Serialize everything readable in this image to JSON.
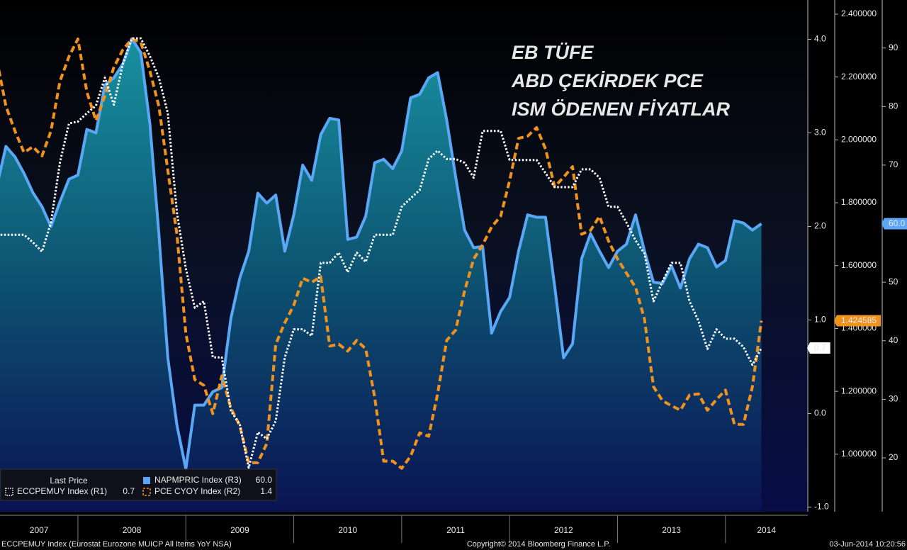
{
  "chart_data": {
    "type": "line",
    "annotations": [
      {
        "text": "EB TÜFE",
        "color": "#ffffff"
      },
      {
        "text": "ABD ÇEKİRDEK PCE",
        "color": "#f0921e"
      },
      {
        "text": "ISM ÖDENEN FİYATLAR",
        "color": "#5aa8f5"
      }
    ],
    "legend_title": "Last Price",
    "footer_left": "ECCPEMUY Index (Eurostat Eurozone MUICP All Items YoY NSA)",
    "footer_center": "Copyright© 2014 Bloomberg Finance L.P.",
    "footer_right": "03-Jun-2014 10:20:56",
    "x": [
      2007.25,
      2007.333,
      2007.417,
      2007.5,
      2007.583,
      2007.667,
      2007.75,
      2007.833,
      2007.917,
      2008,
      2008.083,
      2008.167,
      2008.25,
      2008.333,
      2008.417,
      2008.5,
      2008.583,
      2008.667,
      2008.75,
      2008.833,
      2008.917,
      2009,
      2009.083,
      2009.167,
      2009.25,
      2009.333,
      2009.417,
      2009.5,
      2009.583,
      2009.667,
      2009.75,
      2009.833,
      2009.917,
      2010,
      2010.083,
      2010.167,
      2010.25,
      2010.333,
      2010.417,
      2010.5,
      2010.583,
      2010.667,
      2010.75,
      2010.833,
      2010.917,
      2011,
      2011.083,
      2011.167,
      2011.25,
      2011.333,
      2011.417,
      2011.5,
      2011.583,
      2011.667,
      2011.75,
      2011.833,
      2011.917,
      2012,
      2012.083,
      2012.167,
      2012.25,
      2012.333,
      2012.417,
      2012.5,
      2012.583,
      2012.667,
      2012.75,
      2012.833,
      2012.917,
      2013,
      2013.083,
      2013.167,
      2013.25,
      2013.333,
      2013.417,
      2013.5,
      2013.583,
      2013.667,
      2013.75,
      2013.833,
      2013.917,
      2014,
      2014.083,
      2014.167,
      2014.25,
      2014.333
    ],
    "xlim": [
      2007.278,
      2014.763
    ],
    "xticks": [
      {
        "value": 2007.64,
        "label": "2007"
      },
      {
        "value": 2008.5,
        "label": "2008"
      },
      {
        "value": 2009.5,
        "label": "2009"
      },
      {
        "value": 2010.5,
        "label": "2010"
      },
      {
        "value": 2011.5,
        "label": "2011"
      },
      {
        "value": 2012.5,
        "label": "2012"
      },
      {
        "value": 2013.5,
        "label": "2013"
      },
      {
        "value": 2014.38,
        "label": "2014"
      }
    ],
    "ylim": [
      -1.05,
      4.42
    ],
    "yticks": [
      {
        "value": -1,
        "label": "-1.0"
      },
      {
        "value": 0,
        "label": "0.0"
      },
      {
        "value": 1,
        "label": "1.0"
      },
      {
        "value": 2,
        "label": "2.0"
      },
      {
        "value": 3,
        "label": "3.0"
      },
      {
        "value": 4,
        "label": "4.0"
      }
    ],
    "y2lim": [
      0.817,
      2.445
    ],
    "y2ticks": [
      {
        "value": 1,
        "label": "1.000000"
      },
      {
        "value": 1.2,
        "label": "1.200000"
      },
      {
        "value": 1.4,
        "label": "1.400000"
      },
      {
        "value": 1.6,
        "label": "1.600000"
      },
      {
        "value": 1.8,
        "label": "1.800000"
      },
      {
        "value": 2,
        "label": "2.000000"
      },
      {
        "value": 2.2,
        "label": "2.200000"
      },
      {
        "value": 2.4,
        "label": "2.400000"
      }
    ],
    "y3lim": [
      10.8,
      98.2
    ],
    "y3ticks": [
      20,
      30,
      40,
      50,
      60,
      70,
      80,
      90
    ],
    "series": [
      {
        "name": "ECCPEMUY Index  (R1)",
        "legend_value": "0.7",
        "flag_label": "0.7",
        "axis": "y",
        "color": "#ffffff",
        "style": "dotted",
        "values": [
          1.91,
          1.91,
          1.91,
          1.91,
          1.83,
          1.73,
          2.04,
          2.68,
          3.1,
          3.12,
          3.21,
          3.29,
          3.59,
          3.3,
          3.74,
          4.01,
          4.01,
          3.82,
          3.59,
          3.21,
          2.15,
          1.55,
          1.13,
          1.2,
          0.6,
          0.6,
          0.03,
          -0.12,
          -0.58,
          -0.2,
          -0.27,
          -0.08,
          0.6,
          0.9,
          0.9,
          0.83,
          1.61,
          1.61,
          1.72,
          1.51,
          1.72,
          1.62,
          1.91,
          1.91,
          1.91,
          2.21,
          2.3,
          2.39,
          2.72,
          2.81,
          2.72,
          2.72,
          2.68,
          2.52,
          3.02,
          3.02,
          3.02,
          2.71,
          2.71,
          2.71,
          2.71,
          2.57,
          2.42,
          2.42,
          2.42,
          2.61,
          2.61,
          2.52,
          2.21,
          2.21,
          2.04,
          1.85,
          1.71,
          1.2,
          1.41,
          1.61,
          1.61,
          1.2,
          0.99,
          0.69,
          0.9,
          0.8,
          0.8,
          0.71,
          0.52,
          0.7
        ]
      },
      {
        "name": "PCE CYOY Index  (R2)",
        "legend_value": "1.4",
        "flag_label": "1.424585",
        "axis": "y2",
        "color": "#f0921e",
        "style": "dashed",
        "values": [
          2.253,
          2.107,
          2.028,
          1.96,
          1.978,
          1.949,
          2.028,
          2.186,
          2.265,
          2.321,
          2.152,
          2.061,
          2.14,
          2.231,
          2.287,
          2.321,
          2.31,
          2.219,
          2.107,
          1.903,
          1.7,
          1.384,
          1.237,
          1.219,
          1.129,
          1.249,
          1.147,
          1.091,
          0.973,
          0.973,
          1.034,
          1.35,
          1.418,
          1.474,
          1.56,
          1.547,
          1.565,
          1.344,
          1.35,
          1.328,
          1.362,
          1.335,
          1.181,
          0.978,
          0.978,
          0.955,
          0.994,
          1.068,
          1.057,
          1.192,
          1.362,
          1.395,
          1.52,
          1.621,
          1.666,
          1.723,
          1.757,
          1.87,
          2.005,
          2.012,
          2.039,
          1.971,
          1.851,
          1.881,
          1.915,
          1.7,
          1.712,
          1.757,
          1.678,
          1.621,
          1.576,
          1.531,
          1.429,
          1.215,
          1.17,
          1.154,
          1.14,
          1.188,
          1.192,
          1.14,
          1.174,
          1.204,
          1.095,
          1.095,
          1.215,
          1.424585
        ]
      },
      {
        "name": "NAPMPRIC Index  (R3)",
        "legend_value": "60.0",
        "flag_label": "60.0",
        "axis": "y3",
        "color": "#5aa8f5",
        "style": "solid",
        "area": true,
        "values": [
          66.5,
          73.2,
          71.4,
          68.6,
          65.3,
          62.9,
          59.5,
          63.7,
          67.6,
          68.3,
          76.1,
          75.5,
          83.7,
          84.9,
          87.3,
          91.6,
          89.2,
          77,
          58.3,
          37.1,
          25.6,
          18.1,
          29,
          29,
          31.3,
          32,
          43.8,
          50.7,
          55.3,
          65.2,
          63.5,
          64.9,
          55.3,
          61.5,
          70,
          67.4,
          75.2,
          78,
          77.7,
          57.3,
          57.7,
          61.3,
          70.4,
          71,
          69.4,
          72.4,
          81.5,
          82.1,
          84.9,
          85.8,
          77.7,
          68,
          58.9,
          55.9,
          56.1,
          41.3,
          45,
          47.4,
          55.3,
          61.5,
          61.1,
          61.1,
          49.4,
          37.1,
          39.5,
          54,
          58.3,
          55.3,
          52.5,
          55.3,
          56.5,
          61.5,
          55.3,
          50,
          49.8,
          52.8,
          49,
          54,
          56.5,
          55.9,
          52.6,
          53.7,
          60.5,
          60.1,
          58.9,
          60
        ]
      }
    ]
  }
}
